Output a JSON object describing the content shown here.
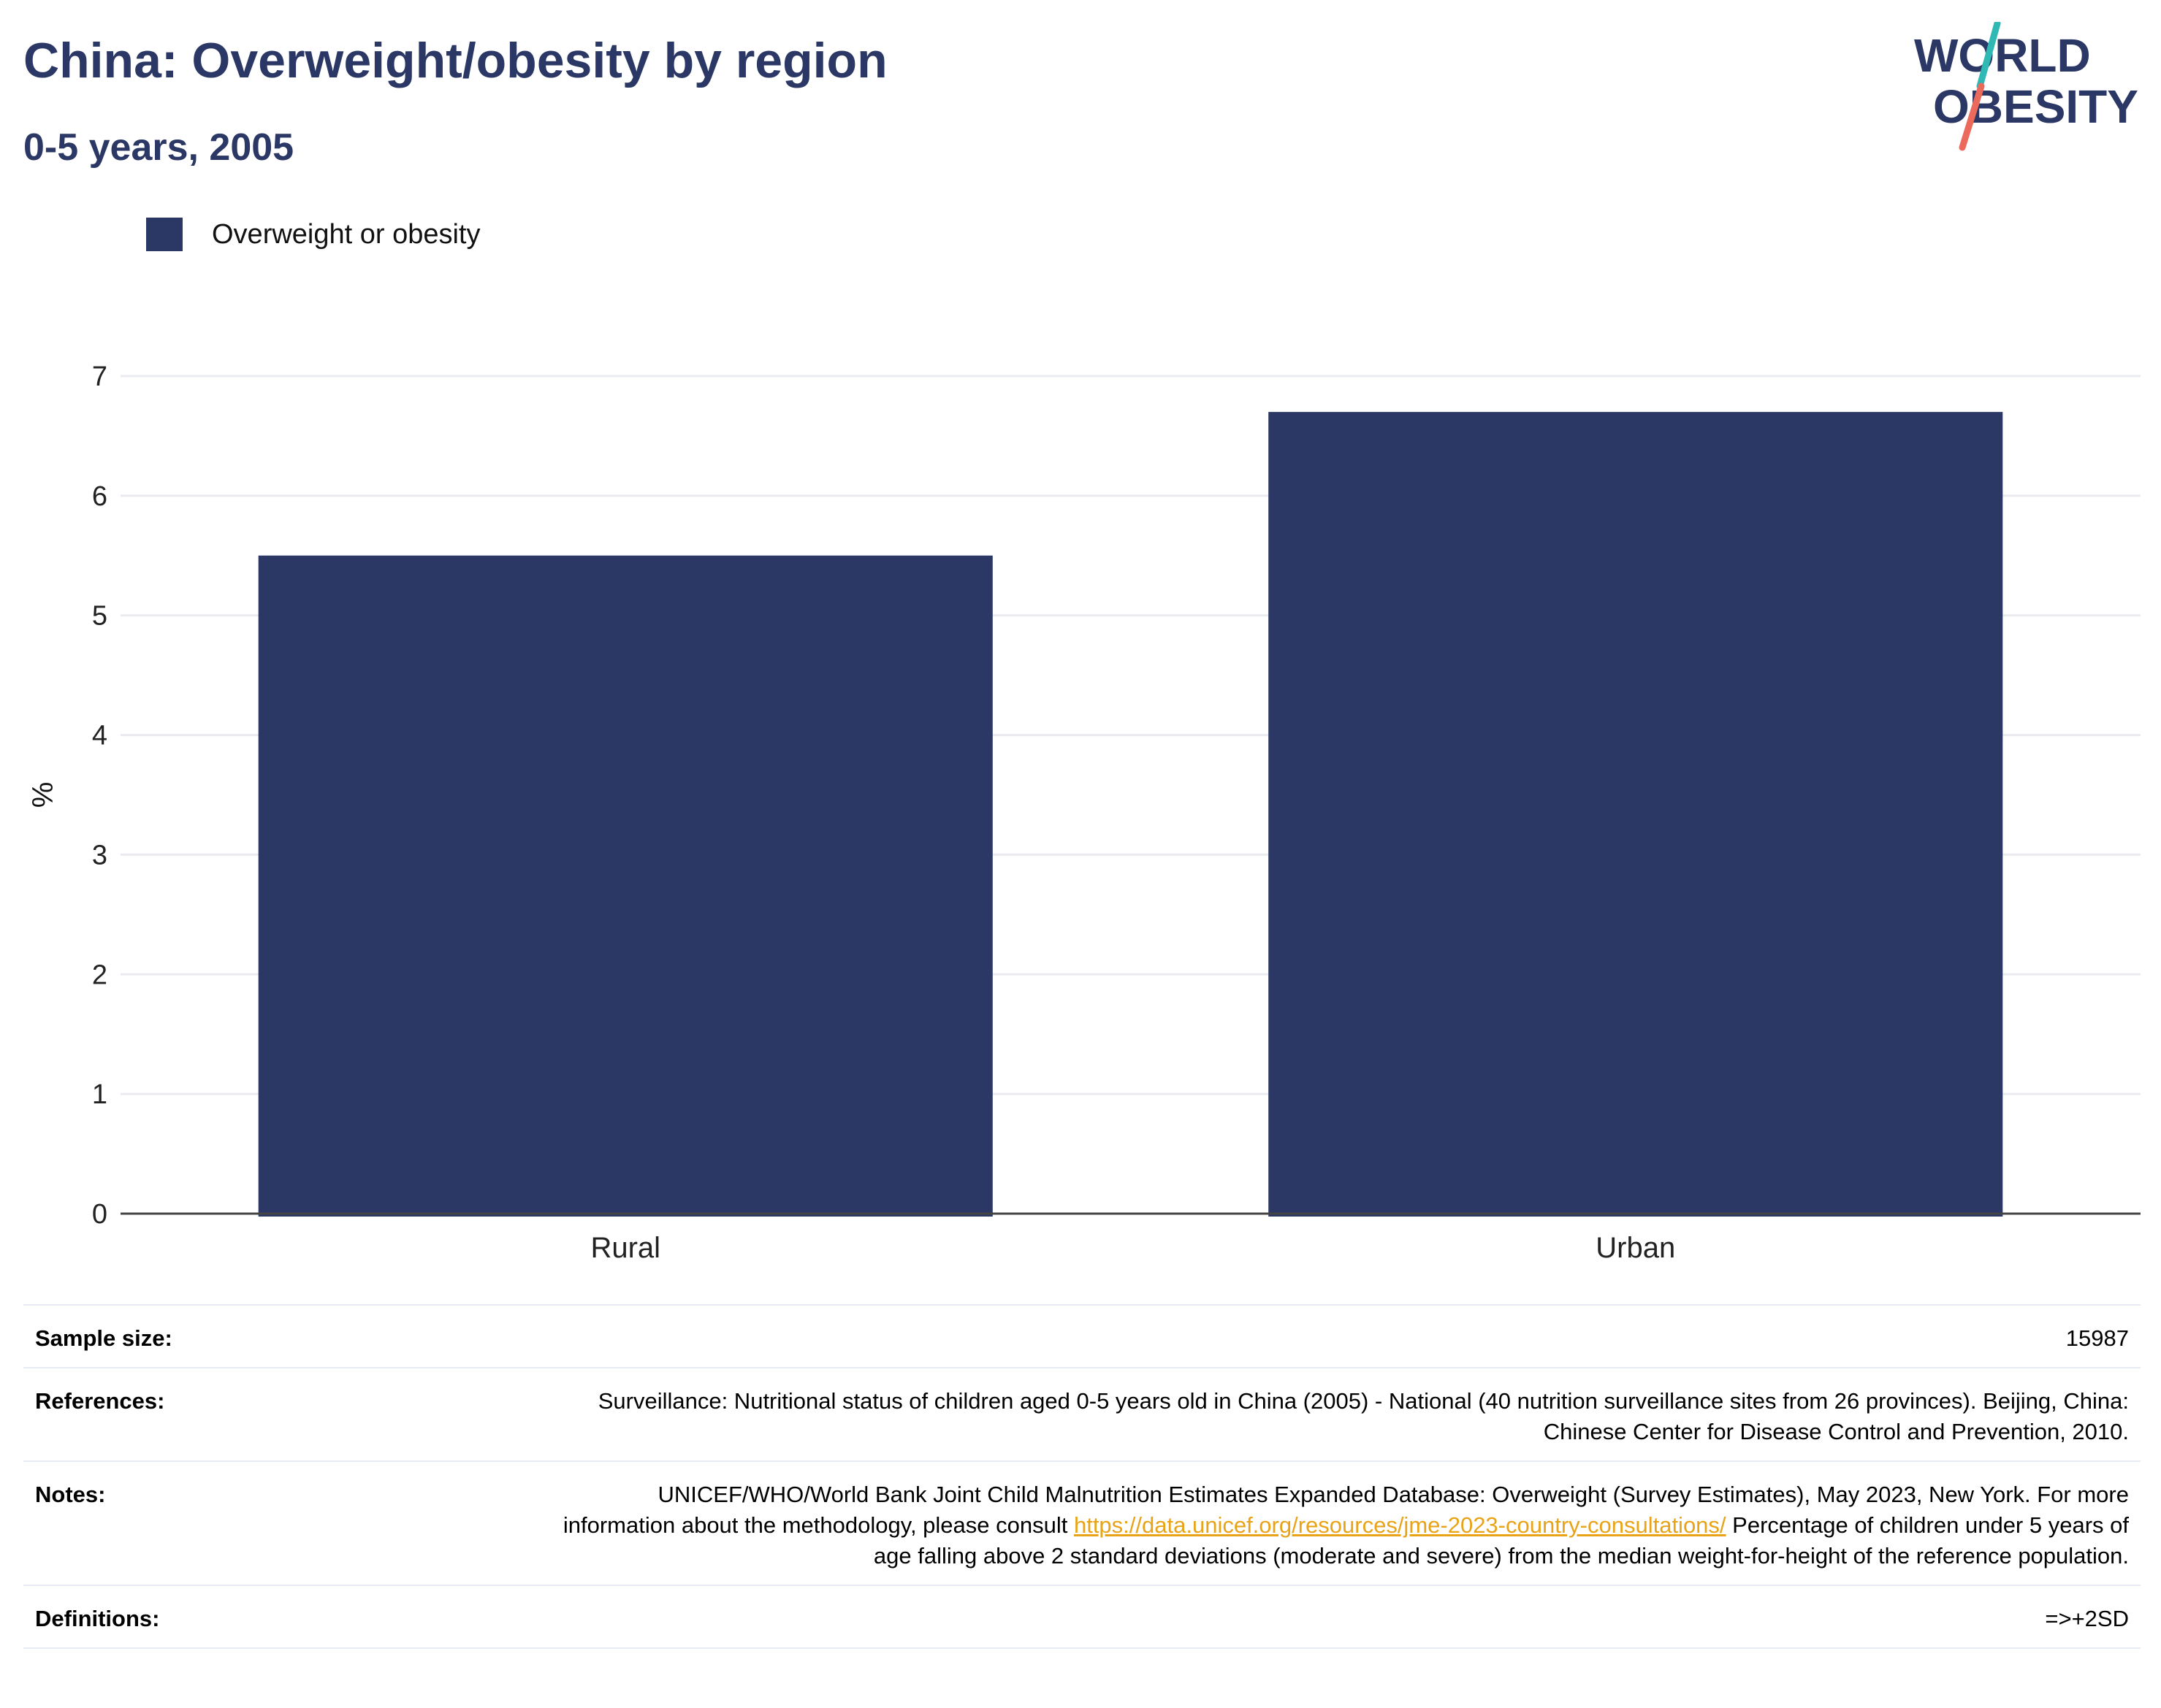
{
  "header": {
    "title": "China: Overweight/obesity by region",
    "subtitle": "0-5 years, 2005"
  },
  "logo": {
    "line1": "WORLD",
    "line2": "OBESITY"
  },
  "colors": {
    "bar": "#2b3764",
    "title": "#2b3764",
    "link": "#e8a317",
    "logo_teal": "#2fb8b4",
    "logo_coral": "#ec6a5c"
  },
  "chart_data": {
    "type": "bar",
    "categories": [
      "Rural",
      "Urban"
    ],
    "series": [
      {
        "name": "Overweight or obesity",
        "values": [
          5.5,
          6.7
        ]
      }
    ],
    "xlabel": "",
    "ylabel": "%",
    "ylim": [
      0,
      7
    ],
    "yticks": [
      "0",
      "1",
      "2",
      "3",
      "4",
      "5",
      "6",
      "7"
    ],
    "grid": true,
    "legend": "top-left"
  },
  "info": {
    "sample_size_label": "Sample size:",
    "sample_size_value": "15987",
    "references_label": "References:",
    "references_value": "Surveillance: Nutritional status of children aged 0-5 years old in China (2005) - National (40 nutrition surveillance sites from 26 provinces). Beijing, China: Chinese Center for Disease Control and Prevention, 2010.",
    "notes_label": "Notes:",
    "notes_text_1": "UNICEF/WHO/World Bank Joint Child Malnutrition Estimates Expanded Database: Overweight (Survey Estimates), May 2023, New York. For more information about the methodology, please consult ",
    "notes_link": "https://data.unicef.org/resources/jme-2023-country-consultations/",
    "notes_text_2": " Percentage of children under 5 years of age falling above 2 standard deviations (moderate and severe) from the median weight-for-height of the reference population.",
    "definitions_label": "Definitions:",
    "definitions_value": "=>+2SD"
  }
}
